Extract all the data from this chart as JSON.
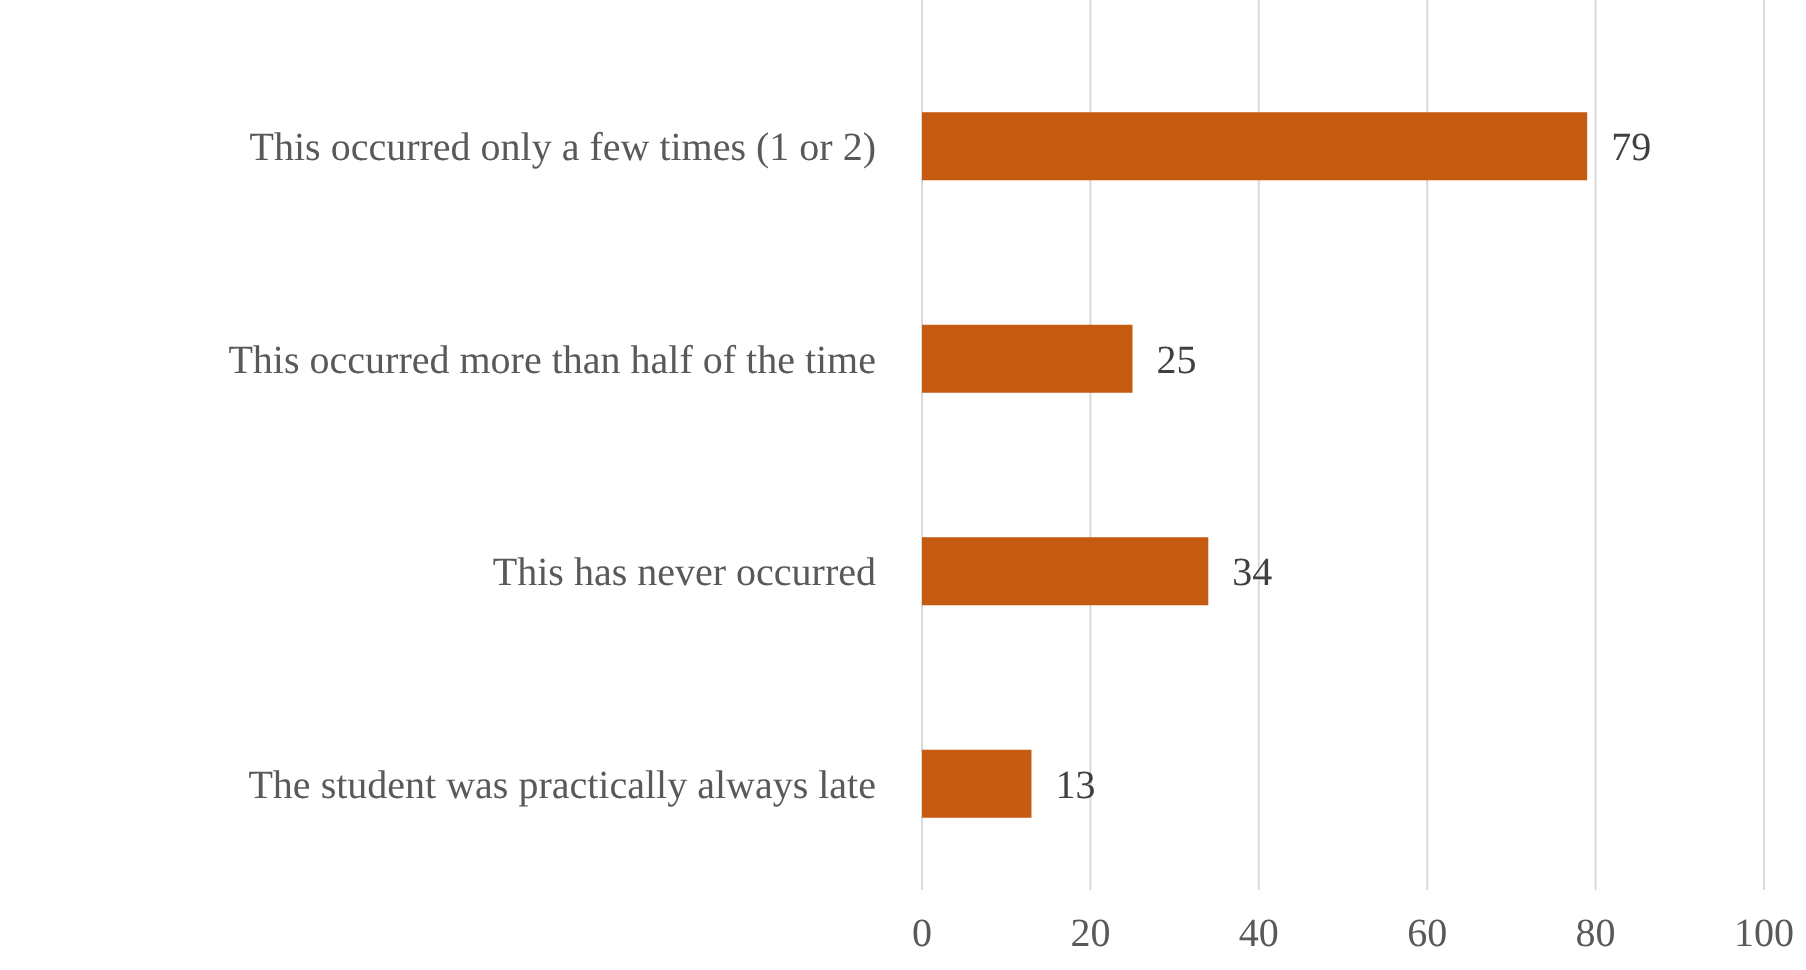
{
  "chart_data": {
    "type": "bar",
    "orientation": "horizontal",
    "categories": [
      "This occurred only a few times (1 or 2)",
      "This occurred more than half of the time",
      "This has never occurred",
      "The student was practically always late"
    ],
    "values": [
      79,
      25,
      34,
      13
    ],
    "color": "#c55a11",
    "xlim": [
      0,
      100
    ],
    "xticks": [
      0,
      20,
      40,
      60,
      80,
      100
    ],
    "grid": "x",
    "data_labels": true
  }
}
